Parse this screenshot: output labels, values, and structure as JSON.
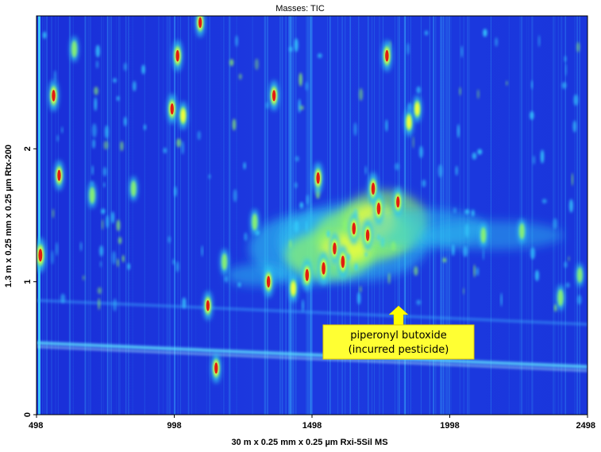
{
  "chart_data": {
    "type": "heatmap",
    "title": "Masses:  TIC",
    "xlabel": "30 m x 0.25 mm x 0.25 µm Rxi-5Sil MS",
    "ylabel": "1.3 m x 0.25 mm x 0.25 µm Rtx-200",
    "xlim": [
      498,
      2498
    ],
    "ylim": [
      0,
      3
    ],
    "x_ticks": [
      "498",
      "998",
      "1498",
      "1998",
      "2498"
    ],
    "y_ticks": [
      "0",
      "1",
      "2"
    ],
    "grid": false,
    "colorscale": [
      "#1a2bd6",
      "#1f6cf2",
      "#2ec7f0",
      "#8ef56a",
      "#ffff33",
      "#ff7a1a",
      "#e01010"
    ],
    "annotation": {
      "lines": [
        "piperonyl butoxide",
        "(incurred pesticide)"
      ],
      "x": 1748,
      "y": 0.82,
      "arrow_color": "#ffff00",
      "box_color": "#ffff33"
    },
    "peaks": [
      {
        "x": 512,
        "y": 1.2,
        "intensity": 1.0
      },
      {
        "x": 560,
        "y": 2.4,
        "intensity": 0.85
      },
      {
        "x": 580,
        "y": 1.8,
        "intensity": 0.8
      },
      {
        "x": 635,
        "y": 2.75,
        "intensity": 0.6
      },
      {
        "x": 700,
        "y": 1.65,
        "intensity": 0.6
      },
      {
        "x": 850,
        "y": 1.7,
        "intensity": 0.55
      },
      {
        "x": 990,
        "y": 2.3,
        "intensity": 0.8
      },
      {
        "x": 1010,
        "y": 2.7,
        "intensity": 0.85
      },
      {
        "x": 1030,
        "y": 2.25,
        "intensity": 0.7
      },
      {
        "x": 1092,
        "y": 2.95,
        "intensity": 0.75
      },
      {
        "x": 1120,
        "y": 0.82,
        "intensity": 0.75
      },
      {
        "x": 1150,
        "y": 0.35,
        "intensity": 0.8
      },
      {
        "x": 1180,
        "y": 1.15,
        "intensity": 0.6
      },
      {
        "x": 1290,
        "y": 1.45,
        "intensity": 0.6
      },
      {
        "x": 1340,
        "y": 1.0,
        "intensity": 0.85
      },
      {
        "x": 1360,
        "y": 2.4,
        "intensity": 0.8
      },
      {
        "x": 1430,
        "y": 0.95,
        "intensity": 0.7
      },
      {
        "x": 1480,
        "y": 1.05,
        "intensity": 0.9
      },
      {
        "x": 1520,
        "y": 1.78,
        "intensity": 0.85
      },
      {
        "x": 1540,
        "y": 1.1,
        "intensity": 0.95
      },
      {
        "x": 1580,
        "y": 1.25,
        "intensity": 0.9
      },
      {
        "x": 1610,
        "y": 1.15,
        "intensity": 0.95
      },
      {
        "x": 1650,
        "y": 1.4,
        "intensity": 0.9
      },
      {
        "x": 1700,
        "y": 1.35,
        "intensity": 0.85
      },
      {
        "x": 1720,
        "y": 1.7,
        "intensity": 0.9
      },
      {
        "x": 1740,
        "y": 1.55,
        "intensity": 0.9
      },
      {
        "x": 1770,
        "y": 2.7,
        "intensity": 0.85
      },
      {
        "x": 1810,
        "y": 1.6,
        "intensity": 0.8
      },
      {
        "x": 1850,
        "y": 2.2,
        "intensity": 0.7
      },
      {
        "x": 1880,
        "y": 2.3,
        "intensity": 0.65
      },
      {
        "x": 2120,
        "y": 1.35,
        "intensity": 0.55
      },
      {
        "x": 2260,
        "y": 1.38,
        "intensity": 0.55
      },
      {
        "x": 2400,
        "y": 0.88,
        "intensity": 0.6
      },
      {
        "x": 2470,
        "y": 1.05,
        "intensity": 0.5
      }
    ]
  }
}
